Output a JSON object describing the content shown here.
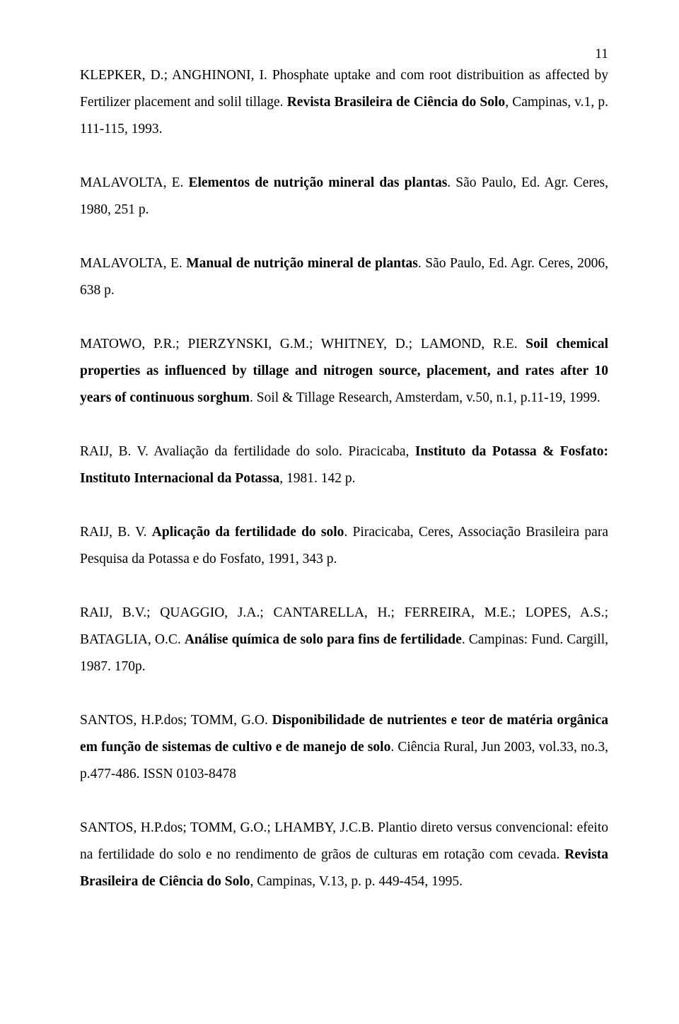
{
  "page_number": "11",
  "font": {
    "family": "Times New Roman",
    "size_pt": 15,
    "color": "#000000",
    "background": "#ffffff"
  },
  "references": [
    {
      "pre": "KLEPKER, D.; ANGHINONI, I. Phosphate uptake and com root distribuition as affected by Fertilizer placement and solil tillage. ",
      "bold": "Revista Brasileira de Ciência do Solo",
      "post": ", Campinas, v.1, p. 111-115, 1993."
    },
    {
      "pre": "MALAVOLTA, E. ",
      "bold": "Elementos de nutrição mineral das plantas",
      "post": ". São Paulo, Ed. Agr. Ceres, 1980, 251 p."
    },
    {
      "pre": "MALAVOLTA, E. ",
      "bold": "Manual de nutrição mineral de plantas",
      "post": ". São Paulo, Ed. Agr. Ceres, 2006, 638 p."
    },
    {
      "pre": "MATOWO, P.R.; PIERZYNSKI, G.M.; WHITNEY, D.; LAMOND, R.E. ",
      "bold": "Soil chemical properties as influenced by tillage and nitrogen source, placement, and rates after 10 years of continuous sorghum",
      "post": ". Soil & Tillage Research, Amsterdam, v.50, n.1, p.11-19, 1999."
    },
    {
      "pre": "RAIJ, B. V. Avaliação da fertilidade do solo. Piracicaba, ",
      "bold": "Instituto da Potassa & Fosfato: Instituto Internacional da Potassa",
      "post": ", 1981. 142 p."
    },
    {
      "pre": "RAIJ, B. V. ",
      "bold": "Aplicação da fertilidade do solo",
      "post": ". Piracicaba, Ceres, Associação Brasileira para Pesquisa da Potassa e do Fosfato, 1991, 343 p."
    },
    {
      "pre": "RAIJ, B.V.; QUAGGIO, J.A.; CANTARELLA, H.; FERREIRA, M.E.; LOPES, A.S.; BATAGLIA, O.C. ",
      "bold": "Análise química de solo para fins de fertilidade",
      "post": ". Campinas: Fund. Cargill, 1987. 170p."
    },
    {
      "pre": "SANTOS, H.P.dos; TOMM, G.O. ",
      "bold": "Disponibilidade de nutrientes e teor de matéria orgânica em função de sistemas de cultivo e de manejo de solo",
      "post": ". Ciência Rural, Jun 2003, vol.33, no.3, p.477-486. ISSN 0103-8478"
    },
    {
      "pre": "SANTOS, H.P.dos; TOMM, G.O.; LHAMBY, J.C.B. Plantio direto versus convencional: efeito na fertilidade do solo e no rendimento de grãos de culturas em rotação com cevada. ",
      "bold": "Revista Brasileira de Ciência do Solo",
      "post": ", Campinas, V.13, p. p. 449-454, 1995."
    }
  ]
}
